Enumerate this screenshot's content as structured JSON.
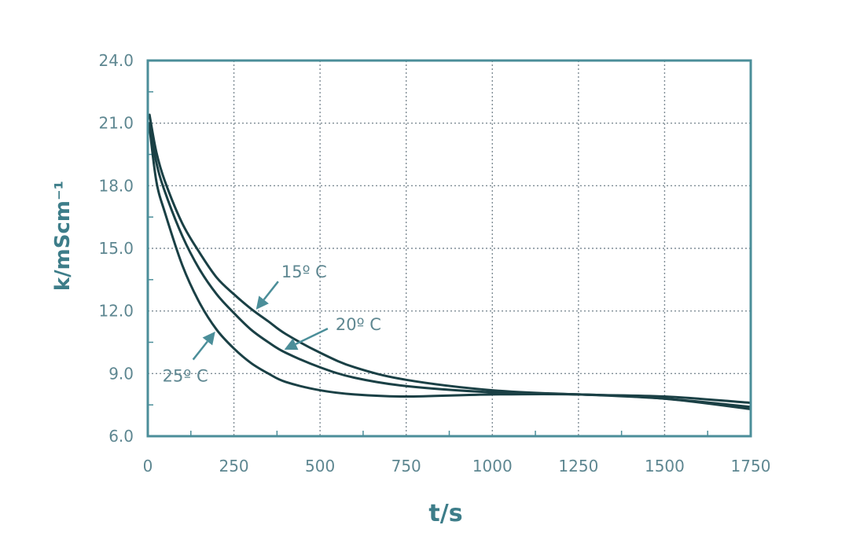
{
  "chart_data": {
    "type": "line",
    "xlabel": "t/s",
    "ylabel": "k/mScm⁻¹",
    "xlim": [
      0,
      1750
    ],
    "ylim": [
      6.0,
      24.0
    ],
    "x_ticks": [
      "0",
      "250",
      "500",
      "750",
      "1000",
      "1250",
      "1500",
      "1750"
    ],
    "y_ticks": [
      "6.0",
      "9.0",
      "12.0",
      "15.0",
      "18.0",
      "21.0",
      "24.0"
    ],
    "grid": true,
    "series": [
      {
        "name": "15º C",
        "x": [
          5,
          25,
          50,
          100,
          150,
          200,
          250,
          300,
          350,
          400,
          500,
          600,
          750,
          1000,
          1250,
          1500,
          1750
        ],
        "y": [
          21.4,
          19.6,
          18.2,
          16.2,
          14.8,
          13.6,
          12.8,
          12.1,
          11.5,
          10.9,
          10.0,
          9.3,
          8.7,
          8.2,
          8.0,
          7.9,
          7.6
        ]
      },
      {
        "name": "20º C",
        "x": [
          5,
          25,
          50,
          100,
          150,
          200,
          250,
          300,
          350,
          400,
          500,
          600,
          750,
          1000,
          1250,
          1500,
          1750
        ],
        "y": [
          21.0,
          19.1,
          17.7,
          15.6,
          14.0,
          12.8,
          11.9,
          11.1,
          10.5,
          10.0,
          9.3,
          8.8,
          8.4,
          8.1,
          8.0,
          7.8,
          7.4
        ]
      },
      {
        "name": "25º C",
        "x": [
          5,
          25,
          50,
          100,
          150,
          200,
          250,
          300,
          350,
          400,
          500,
          600,
          750,
          1000,
          1250,
          1500,
          1750
        ],
        "y": [
          20.8,
          18.2,
          16.7,
          14.2,
          12.4,
          11.1,
          10.2,
          9.5,
          9.0,
          8.6,
          8.2,
          8.0,
          7.9,
          8.0,
          8.0,
          7.8,
          7.3
        ]
      }
    ],
    "annotations": [
      {
        "text": "15º C",
        "series": "15º C",
        "at_x": 310
      },
      {
        "text": "20º C",
        "series": "20º C",
        "at_x": 390
      },
      {
        "text": "25º C",
        "series": "25º C",
        "at_x": 200
      }
    ]
  },
  "colors": {
    "frame": "#4b8e99",
    "grid": "#7f8c95",
    "curve": "#1a4045",
    "tick_text": "#5e8791",
    "title_text": "#3d7d89"
  }
}
